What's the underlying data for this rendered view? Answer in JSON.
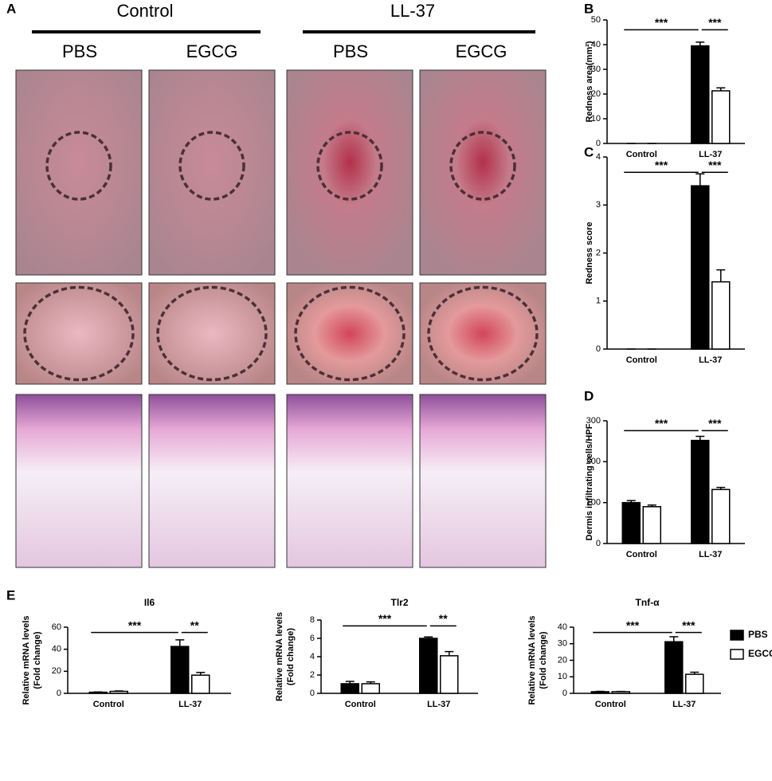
{
  "photo_panel": {
    "panel_label": "A",
    "groups": [
      "Control",
      "LL-37"
    ],
    "columns": [
      "PBS",
      "EGCG",
      "PBS",
      "EGCG"
    ]
  },
  "chart_data": [
    {
      "type": "bar",
      "panel_label": "B",
      "ylabel": [
        "Redness area(mm²)"
      ],
      "categories": [
        "Control",
        "LL-37"
      ],
      "series": [
        {
          "name": "PBS",
          "color": "#000000",
          "values": [
            0,
            39.5
          ],
          "errors": [
            0,
            1.5
          ]
        },
        {
          "name": "EGCG",
          "color": "#ffffff",
          "values": [
            0,
            21.3
          ],
          "errors": [
            0,
            1.2
          ]
        }
      ],
      "ylim": [
        0,
        50
      ],
      "yticks": [
        0,
        10,
        20,
        30,
        40,
        50
      ],
      "annotations": [
        "***",
        "***"
      ]
    },
    {
      "type": "bar",
      "panel_label": "C",
      "ylabel": [
        "Redness score"
      ],
      "categories": [
        "Control",
        "LL-37"
      ],
      "series": [
        {
          "name": "PBS",
          "color": "#000000",
          "values": [
            0,
            3.4
          ],
          "errors": [
            0,
            0.25
          ]
        },
        {
          "name": "EGCG",
          "color": "#ffffff",
          "values": [
            0,
            1.4
          ],
          "errors": [
            0,
            0.25
          ]
        }
      ],
      "ylim": [
        0,
        4
      ],
      "yticks": [
        0,
        1,
        2,
        3,
        4
      ],
      "annotations": [
        "***",
        "***"
      ]
    },
    {
      "type": "bar",
      "panel_label": "D",
      "ylabel": [
        "Dermis infiltrating cells/HPF"
      ],
      "categories": [
        "Control",
        "LL-37"
      ],
      "series": [
        {
          "name": "PBS",
          "color": "#000000",
          "values": [
            100,
            252
          ],
          "errors": [
            5,
            10
          ]
        },
        {
          "name": "EGCG",
          "color": "#ffffff",
          "values": [
            90,
            132
          ],
          "errors": [
            4,
            5
          ]
        }
      ],
      "ylim": [
        0,
        300
      ],
      "yticks": [
        0,
        100,
        200,
        300
      ],
      "annotations": [
        "***",
        "***"
      ]
    },
    {
      "type": "bar",
      "panel_label": "E",
      "title": "Il6",
      "ylabel": [
        "Relative mRNA levels",
        "(Fold change)"
      ],
      "categories": [
        "Control",
        "LL-37"
      ],
      "series": [
        {
          "name": "PBS",
          "color": "#000000",
          "values": [
            1,
            42.5
          ],
          "errors": [
            0.3,
            6
          ]
        },
        {
          "name": "EGCG",
          "color": "#ffffff",
          "values": [
            1.8,
            16.5
          ],
          "errors": [
            0.4,
            2.5
          ]
        }
      ],
      "ylim": [
        0,
        60
      ],
      "yticks": [
        0,
        20,
        40,
        60
      ],
      "annotations": [
        "***",
        "**"
      ]
    },
    {
      "type": "bar",
      "title": "Tlr2",
      "ylabel": [
        "Relative mRNA levels",
        "(Fold change)"
      ],
      "categories": [
        "Control",
        "LL-37"
      ],
      "series": [
        {
          "name": "PBS",
          "color": "#000000",
          "values": [
            1.05,
            6.0
          ],
          "errors": [
            0.25,
            0.15
          ]
        },
        {
          "name": "EGCG",
          "color": "#ffffff",
          "values": [
            1.05,
            4.1
          ],
          "errors": [
            0.2,
            0.45
          ]
        }
      ],
      "ylim": [
        0,
        8
      ],
      "yticks": [
        0,
        2,
        4,
        6,
        8
      ],
      "annotations": [
        "***",
        "**"
      ]
    },
    {
      "type": "bar",
      "title": "Tnf-α",
      "ylabel": [
        "Relative mRNA levels",
        "(Fold change)"
      ],
      "categories": [
        "Control",
        "LL-37"
      ],
      "series": [
        {
          "name": "PBS",
          "color": "#000000",
          "values": [
            1,
            31.2
          ],
          "errors": [
            0.2,
            3
          ]
        },
        {
          "name": "EGCG",
          "color": "#ffffff",
          "values": [
            1,
            11.5
          ],
          "errors": [
            0.15,
            1.3
          ]
        }
      ],
      "ylim": [
        0,
        40
      ],
      "yticks": [
        0,
        10,
        20,
        30,
        40
      ],
      "annotations": [
        "***",
        "***"
      ],
      "legend": "right"
    }
  ]
}
